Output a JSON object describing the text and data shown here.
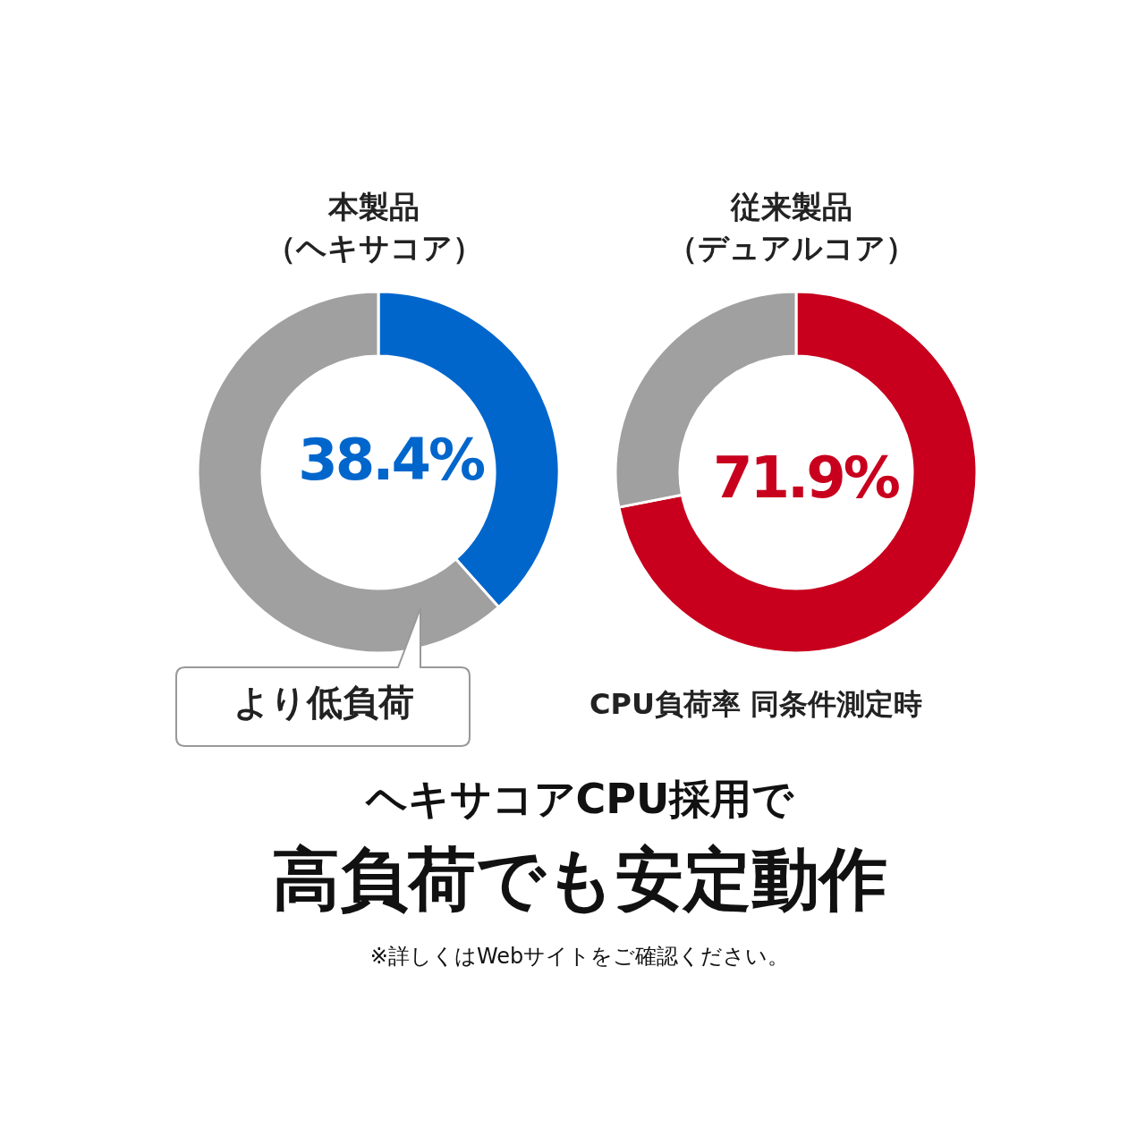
{
  "chart_data": [
    {
      "type": "donut",
      "title": "本製品",
      "subtitle": "（ヘキサコア）",
      "categories": [
        null,
        null
      ],
      "values": [
        38.4,
        61.6
      ],
      "colors": [
        "#0066cc",
        "#a0a0a0"
      ],
      "value_labels": [
        "38.4%",
        null
      ],
      "annotations": [
        "より低負荷"
      ]
    },
    {
      "type": "donut",
      "title": "従来製品",
      "subtitle": "（デュアルコア）",
      "categories": [
        null,
        null
      ],
      "values": [
        71.9,
        28.1
      ],
      "colors": [
        "#c8001e",
        "#a0a0a0"
      ],
      "value_labels": [
        "71.9%",
        null
      ],
      "annotations": [
        "CPU負荷率 同条件測定時"
      ]
    },
    {
      "type": "other",
      "title": "ヘキサコアCPU採用で",
      "subtitle": "高負荷でも安定動作",
      "annotations": [
        "※詳しくはWebサイトをご確認ください。"
      ]
    }
  ]
}
